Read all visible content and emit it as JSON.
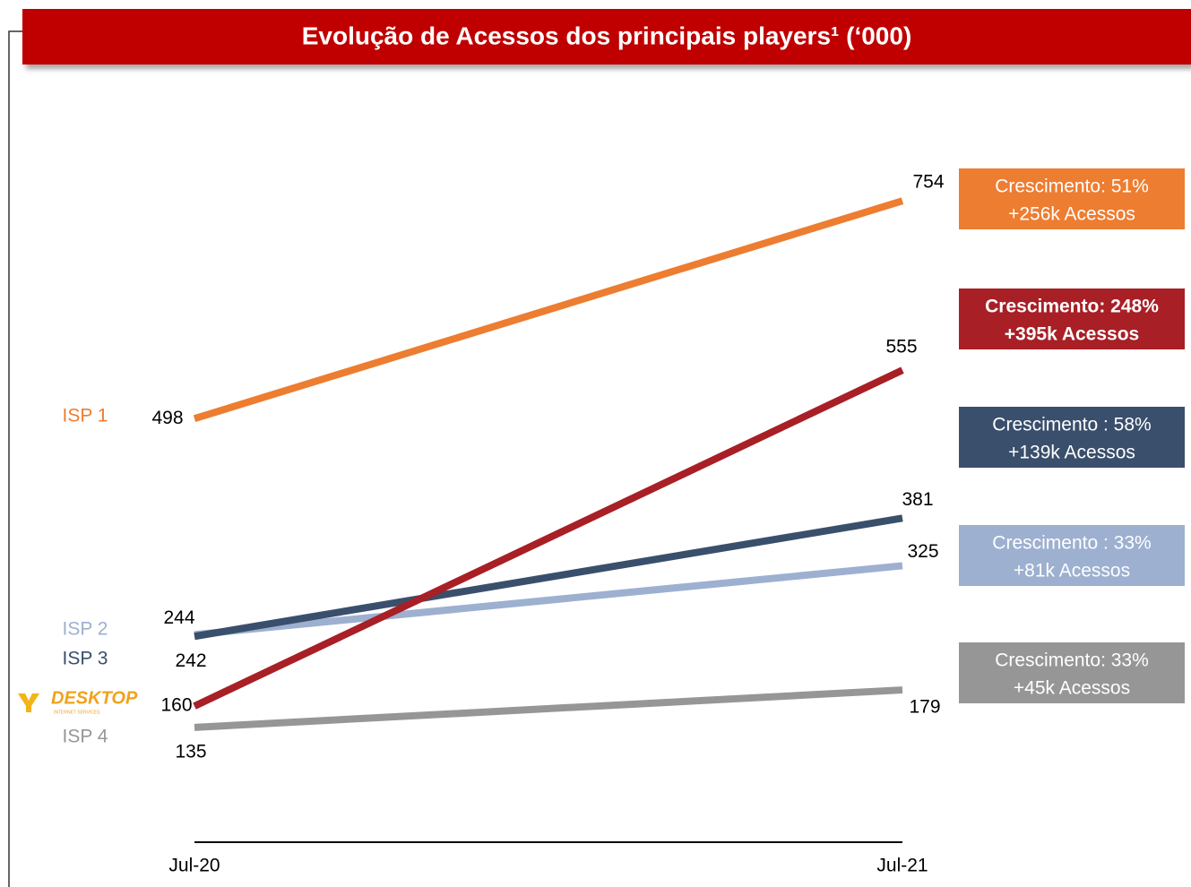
{
  "chart_data": {
    "type": "line",
    "title": "Evolução de Acessos dos principais players¹ (‘000)",
    "categories": [
      "Jul-20",
      "Jul-21"
    ],
    "ylim": [
      0,
      810
    ],
    "series": [
      {
        "name": "ISP 1",
        "color": "#ED7D31",
        "values": [
          498,
          754
        ],
        "annotation": [
          "Crescimento: 51%",
          "+256k Acessos"
        ],
        "highlight": false
      },
      {
        "name": "ISP 2",
        "color": "#9DB0D0",
        "values": [
          244,
          325
        ],
        "annotation": [
          "Crescimento : 33%",
          "+81k Acessos"
        ],
        "highlight": false
      },
      {
        "name": "ISP 3",
        "color": "#3A4F6C",
        "values": [
          242,
          381
        ],
        "annotation": [
          "Crescimento : 58%",
          "+139k Acessos"
        ],
        "highlight": false
      },
      {
        "name": "DESKTOP",
        "subtitle": "INTERNET SERVICES",
        "color": "#A81F26",
        "values": [
          160,
          555
        ],
        "annotation": [
          "Crescimento: 248%",
          "+395k Acessos"
        ],
        "highlight": true
      },
      {
        "name": "ISP 4",
        "color": "#969696",
        "values": [
          135,
          179
        ],
        "annotation": [
          "Crescimento: 33%",
          "+45k Acessos"
        ],
        "highlight": false
      }
    ]
  }
}
